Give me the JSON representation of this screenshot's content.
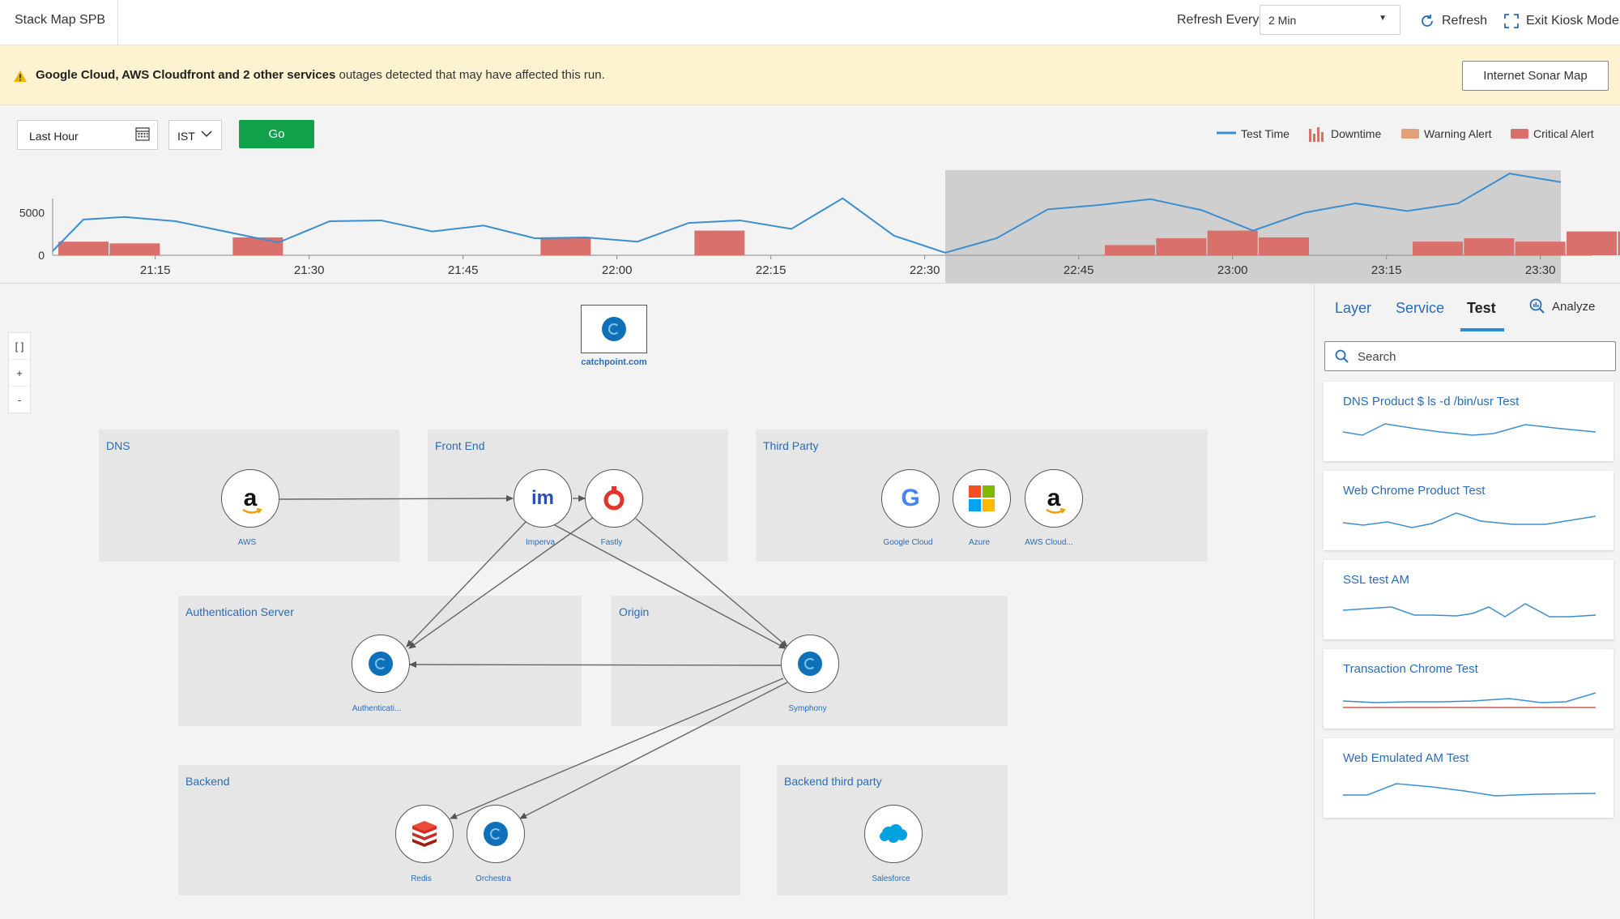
{
  "app": {
    "title": "Stack Map SPB"
  },
  "header": {
    "refresh_label": "Refresh Every",
    "refresh_value": "2 Min",
    "refresh_button": "Refresh",
    "kiosk_button": "Exit Kiosk Mode"
  },
  "banner": {
    "bold_text": "Google Cloud, AWS Cloudfront and 2 other services",
    "rest_text": " outages detected that may have affected this run.",
    "button": "Internet Sonar Map"
  },
  "filters": {
    "date_range": "Last Hour",
    "timezone": "IST",
    "go_button": "Go"
  },
  "legend": {
    "test_time": "Test Time",
    "downtime": "Downtime",
    "warning_alert": "Warning Alert",
    "critical_alert": "Critical Alert"
  },
  "colors": {
    "line": "#3b8fd0",
    "critical": "#d9706c",
    "warning": "#dfa07a",
    "link": "#2a6cb5",
    "go": "#12a14b",
    "selection": "#c8c8c8"
  },
  "chart_data": {
    "type": "line",
    "xlabel": "",
    "ylabel": "",
    "x_ticks": [
      "21:15",
      "21:30",
      "21:45",
      "22:00",
      "22:15",
      "22:30",
      "22:45",
      "23:00",
      "23:15",
      "23:30"
    ],
    "y_ticks": [
      "5000",
      "0"
    ],
    "ylim": [
      0,
      10000
    ],
    "selected_range": [
      "22:32",
      "23:32"
    ],
    "series": [
      {
        "type": "line",
        "x": [
          "21:05",
          "21:08",
          "21:12",
          "21:17",
          "21:27",
          "21:32",
          "21:37",
          "21:42",
          "21:47",
          "21:52",
          "21:57",
          "22:02",
          "22:07",
          "22:12",
          "22:17",
          "22:22",
          "22:27",
          "22:32",
          "22:37",
          "22:42",
          "22:47",
          "22:52",
          "22:57",
          "23:02",
          "23:07",
          "23:12",
          "23:17",
          "23:22",
          "23:27",
          "23:32"
        ],
        "values": [
          500,
          4200,
          4500,
          4000,
          1500,
          4000,
          4100,
          2800,
          3500,
          2000,
          2100,
          1600,
          3800,
          4100,
          3100,
          6700,
          2300,
          300,
          2000,
          5400,
          5900,
          6600,
          5300,
          2900,
          5000,
          6100,
          5200,
          6100,
          9600,
          8600
        ]
      },
      {
        "type": "bar",
        "name": "Critical Alert",
        "x": [
          "21:08",
          "21:13",
          "21:25",
          "21:55",
          "22:10",
          "22:50",
          "22:55",
          "23:00",
          "23:05",
          "23:20",
          "23:25",
          "23:30",
          "23:35",
          "23:40"
        ],
        "values": [
          1600,
          1400,
          2100,
          2100,
          2900,
          1200,
          2000,
          2900,
          2100,
          1600,
          2000,
          1600,
          2800,
          2800
        ]
      }
    ]
  },
  "map": {
    "root": {
      "label": "catchpoint.com"
    },
    "zoom": {
      "fit": "[ ]",
      "in": "+",
      "out": "-"
    },
    "groups": {
      "dns": "DNS",
      "frontend": "Front End",
      "thirdparty": "Third Party",
      "auth": "Authentication Server",
      "origin": "Origin",
      "backend": "Backend",
      "backend3p": "Backend third party"
    },
    "nodes": {
      "aws": "AWS",
      "imperva": "Imperva",
      "fastly": "Fastly",
      "google": "Google Cloud",
      "azure": "Azure",
      "awscloud": "AWS Cloud...",
      "authserver": "Authenticati...",
      "symphony": "Symphony",
      "redis": "Redis",
      "orchestra": "Orchestra",
      "salesforce": "Salesforce"
    },
    "icon_text": {
      "aws": "a",
      "imperva": "im",
      "google": "G"
    }
  },
  "panel": {
    "tabs": [
      "Layer",
      "Service",
      "Test"
    ],
    "active_tab": "Test",
    "analyze": "Analyze",
    "search_placeholder": "Search",
    "tests": [
      {
        "name": "DNS Product $ ls -d /bin/usr Test"
      },
      {
        "name": "Web Chrome Product Test"
      },
      {
        "name": "SSL test AM"
      },
      {
        "name": "Transaction Chrome Test"
      },
      {
        "name": "Web Emulated AM Test"
      }
    ]
  }
}
